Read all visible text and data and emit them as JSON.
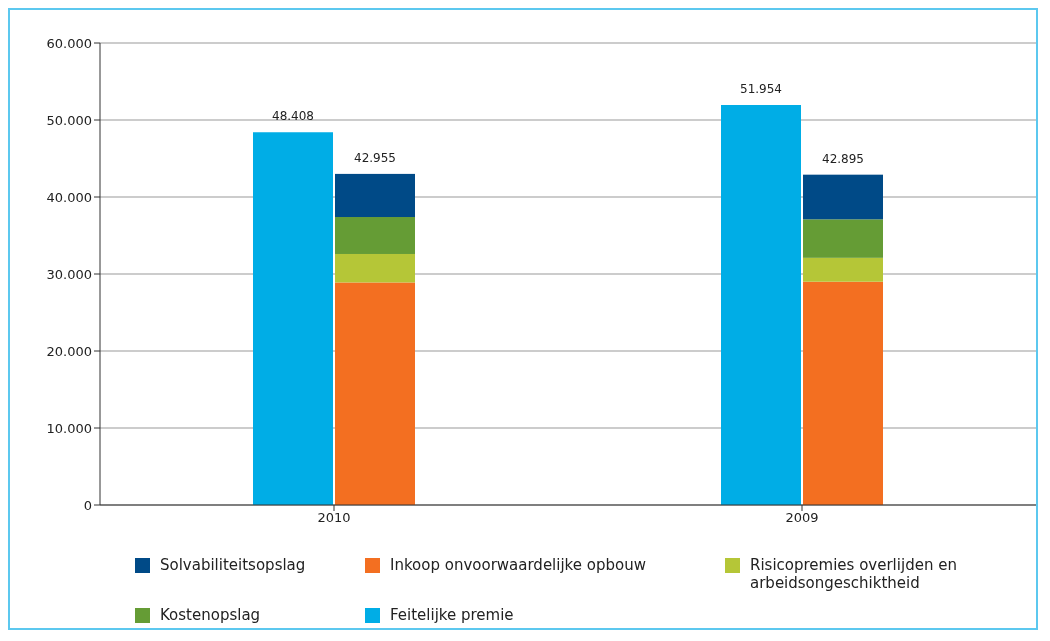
{
  "chart_data": {
    "type": "bar",
    "categories": [
      "2010",
      "2009"
    ],
    "series": [
      {
        "name": "Feitelijke premie",
        "color": "#00ade6",
        "values": [
          48408,
          51954
        ],
        "value_labels": [
          "48.408",
          "51.954"
        ]
      },
      {
        "name": "Inkoop onvoorwaardelijke opbouw",
        "color": "#f36f21",
        "values": [
          28900,
          29000
        ],
        "base": [
          0,
          0
        ]
      },
      {
        "name": "Risicopremies overlijden en arbeidsongeschiktheid",
        "color": "#b5c637",
        "values": [
          3700,
          3100
        ],
        "base": [
          28900,
          29000
        ]
      },
      {
        "name": "Kostenopslag",
        "color": "#659c35",
        "values": [
          4800,
          5000
        ],
        "base": [
          32600,
          32100
        ]
      },
      {
        "name": "Solvabiliteitsopslag",
        "color": "#004a87",
        "values": [
          5600,
          5800
        ],
        "base": [
          37400,
          37100
        ]
      }
    ],
    "annotations": [
      {
        "text": "42.955",
        "x": "2010"
      },
      {
        "text": "42.895",
        "x": "2009"
      }
    ],
    "ylim": [
      0,
      60000
    ],
    "yticks": [
      {
        "value": 0,
        "label": "0"
      },
      {
        "value": 10000,
        "label": "10.000"
      },
      {
        "value": 20000,
        "label": "20.000"
      },
      {
        "value": 30000,
        "label": "30.000"
      },
      {
        "value": 40000,
        "label": "40.000"
      },
      {
        "value": 50000,
        "label": "50.000"
      },
      {
        "value": 60000,
        "label": "60.000"
      }
    ],
    "grid": "y",
    "legend": "bottom"
  }
}
